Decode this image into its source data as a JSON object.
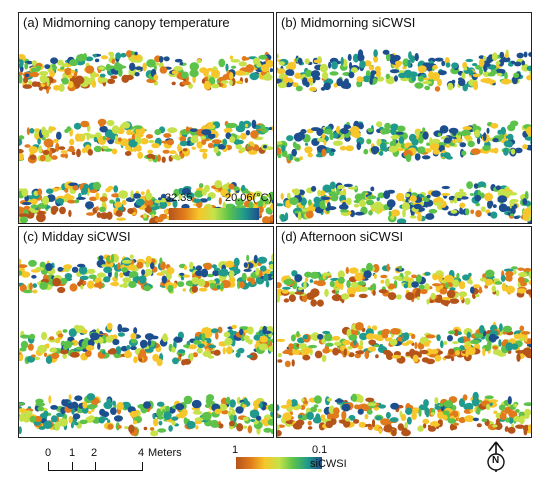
{
  "panels": {
    "a": {
      "title": "(a) Midmorning canopy temperature"
    },
    "b": {
      "title": "(b) Midmorning siCWSI"
    },
    "c": {
      "title": "(c) Midday siCWSI"
    },
    "d": {
      "title": "(d) Afternoon siCWSI"
    }
  },
  "temp_legend": {
    "min_label": "32.35",
    "max_label": "20.06(°C)"
  },
  "scale_bar": {
    "ticks": [
      "0",
      "1",
      "2",
      "4"
    ],
    "unit": "Meters"
  },
  "cwsi_legend": {
    "high_label": "1",
    "low_label": "0.1",
    "title": "siCWSI"
  },
  "north_arrow": {
    "letter": "N",
    "icon": "north-arrow-icon"
  },
  "colors": {
    "ramp": [
      "#b5541a",
      "#e07a1c",
      "#f6c62a",
      "#c6e24a",
      "#5cc24a",
      "#1f9a8c",
      "#1d4f8f"
    ]
  }
}
